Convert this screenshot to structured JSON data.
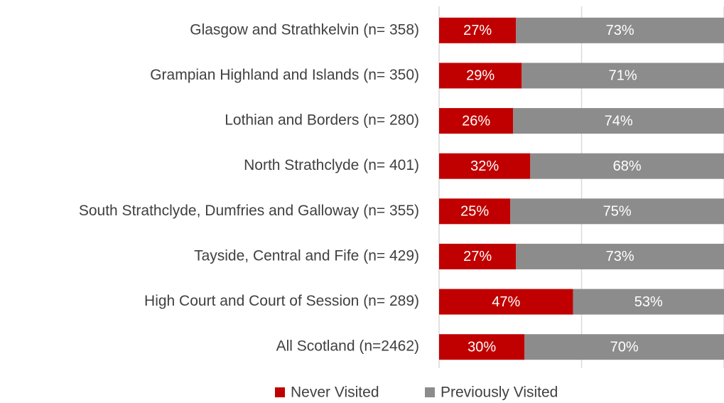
{
  "chart_data": {
    "type": "stacked_barh",
    "categories": [
      "Glasgow and Strathkelvin (n= 358)",
      "Grampian Highland and Islands (n= 350)",
      "Lothian and Borders (n= 280)",
      "North Strathclyde (n= 401)",
      "South Strathclyde, Dumfries and Galloway (n= 355)",
      "Tayside, Central and Fife (n= 429)",
      "High Court and Court of Session (n= 289)",
      "All Scotland (n=2462)"
    ],
    "series": [
      {
        "name": "Never Visited",
        "color": "#c00000",
        "values": [
          27,
          29,
          26,
          32,
          25,
          27,
          47,
          30
        ],
        "value_labels": [
          "27%",
          "29%",
          "26%",
          "32%",
          "25%",
          "27%",
          "47%",
          "30%"
        ]
      },
      {
        "name": "Previously Visited",
        "color": "#8c8c8c",
        "values": [
          73,
          71,
          74,
          68,
          75,
          73,
          53,
          70
        ],
        "value_labels": [
          "73%",
          "71%",
          "74%",
          "68%",
          "75%",
          "73%",
          "53%",
          "70%"
        ]
      }
    ],
    "xlim": [
      0,
      100
    ],
    "xticks": [
      0,
      50,
      100
    ],
    "grid": true,
    "legend": "bottom"
  }
}
